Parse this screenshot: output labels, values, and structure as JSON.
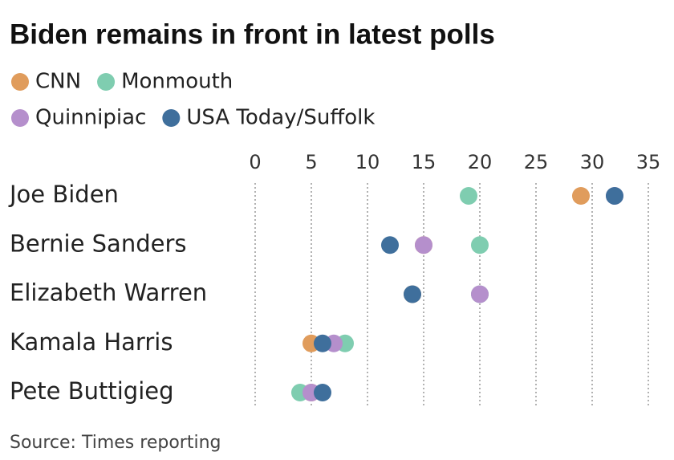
{
  "chart_data": {
    "type": "dot",
    "title": "Biden remains in front in latest polls",
    "source": "Source: Times reporting",
    "categories": [
      "Joe Biden",
      "Bernie Sanders",
      "Elizabeth Warren",
      "Kamala Harris",
      "Pete Buttigieg"
    ],
    "series": [
      {
        "name": "CNN",
        "color": "#e09c5c",
        "values": [
          29,
          15,
          14,
          5,
          5
        ]
      },
      {
        "name": "Monmouth",
        "color": "#7fcdb0",
        "values": [
          19,
          20,
          20,
          8,
          4
        ]
      },
      {
        "name": "Quinnipiac",
        "color": "#b58fcc",
        "values": [
          32,
          15,
          20,
          7,
          5
        ]
      },
      {
        "name": "USA Today/Suffolk",
        "color": "#3f6f9c",
        "values": [
          32,
          12,
          14,
          6,
          6
        ]
      }
    ],
    "xlim": [
      0,
      35
    ],
    "xticks": [
      0,
      5,
      10,
      15,
      20,
      25,
      30,
      35
    ],
    "grid": true
  }
}
